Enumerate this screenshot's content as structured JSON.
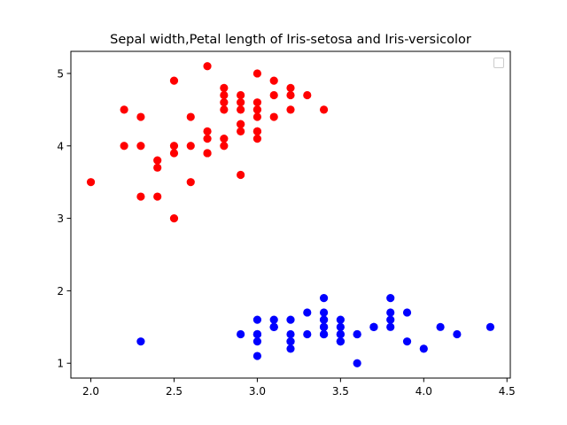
{
  "chart_data": {
    "type": "scatter",
    "title": "Sepal width,Petal length of Iris-setosa and Iris-versicolor",
    "xlabel": "",
    "ylabel": "",
    "xlim": [
      1.88,
      4.52
    ],
    "ylim": [
      0.795,
      5.305
    ],
    "xticks": [
      "2.0",
      "2.5",
      "3.0",
      "3.5",
      "4.0",
      "4.5"
    ],
    "yticks": [
      "1",
      "2",
      "3",
      "4",
      "5"
    ],
    "grid": false,
    "legend": {
      "placement": "top-right",
      "entries": []
    },
    "series": [
      {
        "color": "#ff0000",
        "points": [
          [
            3.2,
            4.7
          ],
          [
            3.2,
            4.5
          ],
          [
            3.1,
            4.9
          ],
          [
            2.3,
            4.0
          ],
          [
            2.8,
            4.6
          ],
          [
            2.8,
            4.5
          ],
          [
            3.3,
            4.7
          ],
          [
            2.4,
            3.3
          ],
          [
            2.9,
            4.6
          ],
          [
            2.7,
            3.9
          ],
          [
            2.0,
            3.5
          ],
          [
            3.0,
            4.2
          ],
          [
            2.2,
            4.0
          ],
          [
            2.9,
            4.7
          ],
          [
            2.9,
            3.6
          ],
          [
            3.1,
            4.4
          ],
          [
            3.0,
            4.5
          ],
          [
            2.7,
            4.1
          ],
          [
            2.2,
            4.5
          ],
          [
            2.5,
            3.9
          ],
          [
            3.2,
            4.8
          ],
          [
            2.8,
            4.0
          ],
          [
            2.5,
            4.9
          ],
          [
            2.8,
            4.7
          ],
          [
            2.9,
            4.3
          ],
          [
            3.0,
            4.4
          ],
          [
            2.8,
            4.8
          ],
          [
            3.0,
            5.0
          ],
          [
            2.9,
            4.5
          ],
          [
            2.6,
            3.5
          ],
          [
            2.4,
            3.8
          ],
          [
            2.4,
            3.7
          ],
          [
            2.7,
            3.9
          ],
          [
            2.7,
            5.1
          ],
          [
            3.0,
            4.5
          ],
          [
            3.4,
            4.5
          ],
          [
            3.1,
            4.7
          ],
          [
            2.3,
            4.4
          ],
          [
            3.0,
            4.1
          ],
          [
            2.5,
            4.0
          ],
          [
            2.6,
            4.4
          ],
          [
            3.0,
            4.6
          ],
          [
            2.6,
            4.0
          ],
          [
            2.3,
            3.3
          ],
          [
            2.7,
            4.2
          ],
          [
            3.0,
            4.2
          ],
          [
            2.9,
            4.2
          ],
          [
            2.9,
            4.3
          ],
          [
            2.5,
            3.0
          ],
          [
            2.8,
            4.1
          ]
        ]
      },
      {
        "color": "#0000ff",
        "points": [
          [
            3.5,
            1.4
          ],
          [
            3.0,
            1.4
          ],
          [
            3.2,
            1.3
          ],
          [
            3.1,
            1.5
          ],
          [
            3.6,
            1.4
          ],
          [
            3.9,
            1.7
          ],
          [
            3.4,
            1.4
          ],
          [
            3.4,
            1.5
          ],
          [
            2.9,
            1.4
          ],
          [
            3.1,
            1.5
          ],
          [
            3.7,
            1.5
          ],
          [
            3.4,
            1.6
          ],
          [
            3.0,
            1.4
          ],
          [
            3.0,
            1.1
          ],
          [
            4.0,
            1.2
          ],
          [
            4.4,
            1.5
          ],
          [
            3.9,
            1.3
          ],
          [
            3.5,
            1.4
          ],
          [
            3.8,
            1.7
          ],
          [
            3.8,
            1.5
          ],
          [
            3.4,
            1.7
          ],
          [
            3.7,
            1.5
          ],
          [
            3.6,
            1.0
          ],
          [
            3.3,
            1.7
          ],
          [
            3.4,
            1.9
          ],
          [
            3.0,
            1.6
          ],
          [
            3.4,
            1.6
          ],
          [
            3.5,
            1.5
          ],
          [
            3.4,
            1.4
          ],
          [
            3.2,
            1.6
          ],
          [
            3.1,
            1.6
          ],
          [
            3.4,
            1.5
          ],
          [
            4.1,
            1.5
          ],
          [
            4.2,
            1.4
          ],
          [
            3.1,
            1.5
          ],
          [
            3.2,
            1.2
          ],
          [
            3.5,
            1.3
          ],
          [
            3.6,
            1.4
          ],
          [
            3.0,
            1.3
          ],
          [
            3.4,
            1.5
          ],
          [
            3.5,
            1.3
          ],
          [
            2.3,
            1.3
          ],
          [
            3.2,
            1.3
          ],
          [
            3.5,
            1.6
          ],
          [
            3.8,
            1.9
          ],
          [
            3.0,
            1.4
          ],
          [
            3.8,
            1.6
          ],
          [
            3.2,
            1.4
          ],
          [
            3.7,
            1.5
          ],
          [
            3.3,
            1.4
          ]
        ]
      }
    ]
  }
}
